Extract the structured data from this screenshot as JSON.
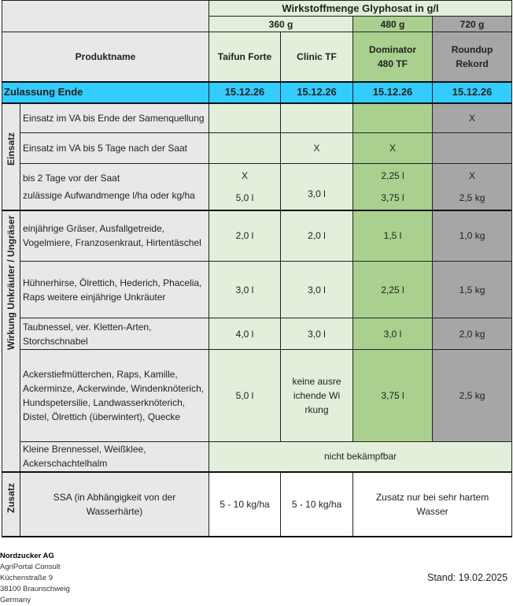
{
  "header": {
    "group_title": "Wirkstoffmenge Glyphosat in g/l",
    "concentrations": [
      "360 g",
      "480 g",
      "720 g"
    ],
    "product_label": "Produktname",
    "products": [
      "Taifun Forte",
      "Clinic TF",
      "Dominator 480 TF",
      "Roundup Rekord"
    ]
  },
  "approval": {
    "label": "Zulassung Ende",
    "dates": [
      "15.12.26",
      "15.12.26",
      "15.12.26",
      "15.12.26"
    ]
  },
  "einsatz": {
    "category": "Einsatz",
    "rows": [
      {
        "label": "Einsatz im VA bis Ende der Samenquellung",
        "values": [
          "",
          "",
          "",
          "X"
        ]
      },
      {
        "label": "Einsatz im VA bis 5 Tage nach der Saat",
        "values": [
          "",
          "X",
          "X",
          ""
        ]
      },
      {
        "label": "bis 2 Tage vor der Saat",
        "values": [
          "X",
          "",
          "2,25 l",
          "X"
        ]
      },
      {
        "label": "zulässige Aufwandmenge l/ha oder kg/ha",
        "values": [
          "5,0 l",
          "3,0 l",
          "3,75 l",
          "2,5 kg"
        ]
      }
    ]
  },
  "wirkung": {
    "category": "Wirkung Unkräuter / Ungräser",
    "rows": [
      {
        "label": "einjährige Gräser, Ausfallgetreide, Vogelmiere, Franzosenkraut, Hirtentäschel",
        "values": [
          "2,0 l",
          "2,0 l",
          "1,5 l",
          "1,0 kg"
        ]
      },
      {
        "label": "Hühnerhirse, Ölrettich, Hederich, Phacelia, Raps weitere einjährige Unkräuter",
        "values": [
          "3,0 l",
          "3,0 l",
          "2,25 l",
          "1,5 kg"
        ]
      },
      {
        "label": "Taubnessel, ver. Kletten-Arten, Storchschnabel",
        "values": [
          "4,0 l",
          "3,0 l",
          "3,0 l",
          "2,0 kg"
        ]
      },
      {
        "label": "Ackerstiefmütterchen, Raps, Kamille, Ackerminze, Ackerwinde, Windenknöterich, Hundspetersilie, Landwasserknöterich, Distel, Ölrettich (überwintert), Quecke",
        "values": [
          "5,0 l",
          "keine ausreichende Wirkung",
          "3,75 l",
          "2,5 kg"
        ]
      },
      {
        "label": "Kleine Brennessel, Weißklee, Ackerschachtelhalm",
        "merged": "nicht bekämpfbar"
      }
    ]
  },
  "zusatz": {
    "category": "Zusatz",
    "label": "SSA (in Abhängigkeit von der Wasserhärte)",
    "values": [
      "5 - 10 kg/ha",
      "5 - 10 kg/ha",
      "Zusatz nur bei sehr hartem Wasser"
    ]
  },
  "footer": {
    "company": "Nordzucker AG",
    "lines": [
      "AgriPortal Consult",
      "Küchenstraße 9",
      "38100 Braunschweig",
      "Germany"
    ],
    "stand": "Stand: 19.02.2025"
  },
  "colors": {
    "light_green": "#e2efda",
    "green": "#a9d08e",
    "gray": "#a6a6a6",
    "blue": "#33ccff"
  }
}
